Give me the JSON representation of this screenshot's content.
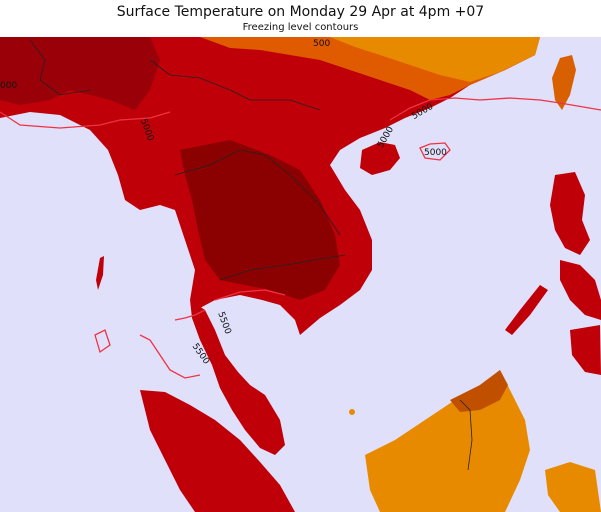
{
  "header": {
    "title": "Surface Temperature on Monday 29 Apr at 4pm +07",
    "subtitle": "Freezing level contours"
  },
  "colors": {
    "sea": "#e0e0fa",
    "land_hot": "#c00008",
    "land_very_hot": "#8b0000",
    "land_warm": "#e05000",
    "land_orange": "#e88a00",
    "contour": "#ee3344",
    "border": "#222222"
  },
  "contours": {
    "labels": [
      "000",
      "5000",
      "500",
      "5000",
      "5000",
      "5000",
      "5500",
      "5500"
    ]
  }
}
